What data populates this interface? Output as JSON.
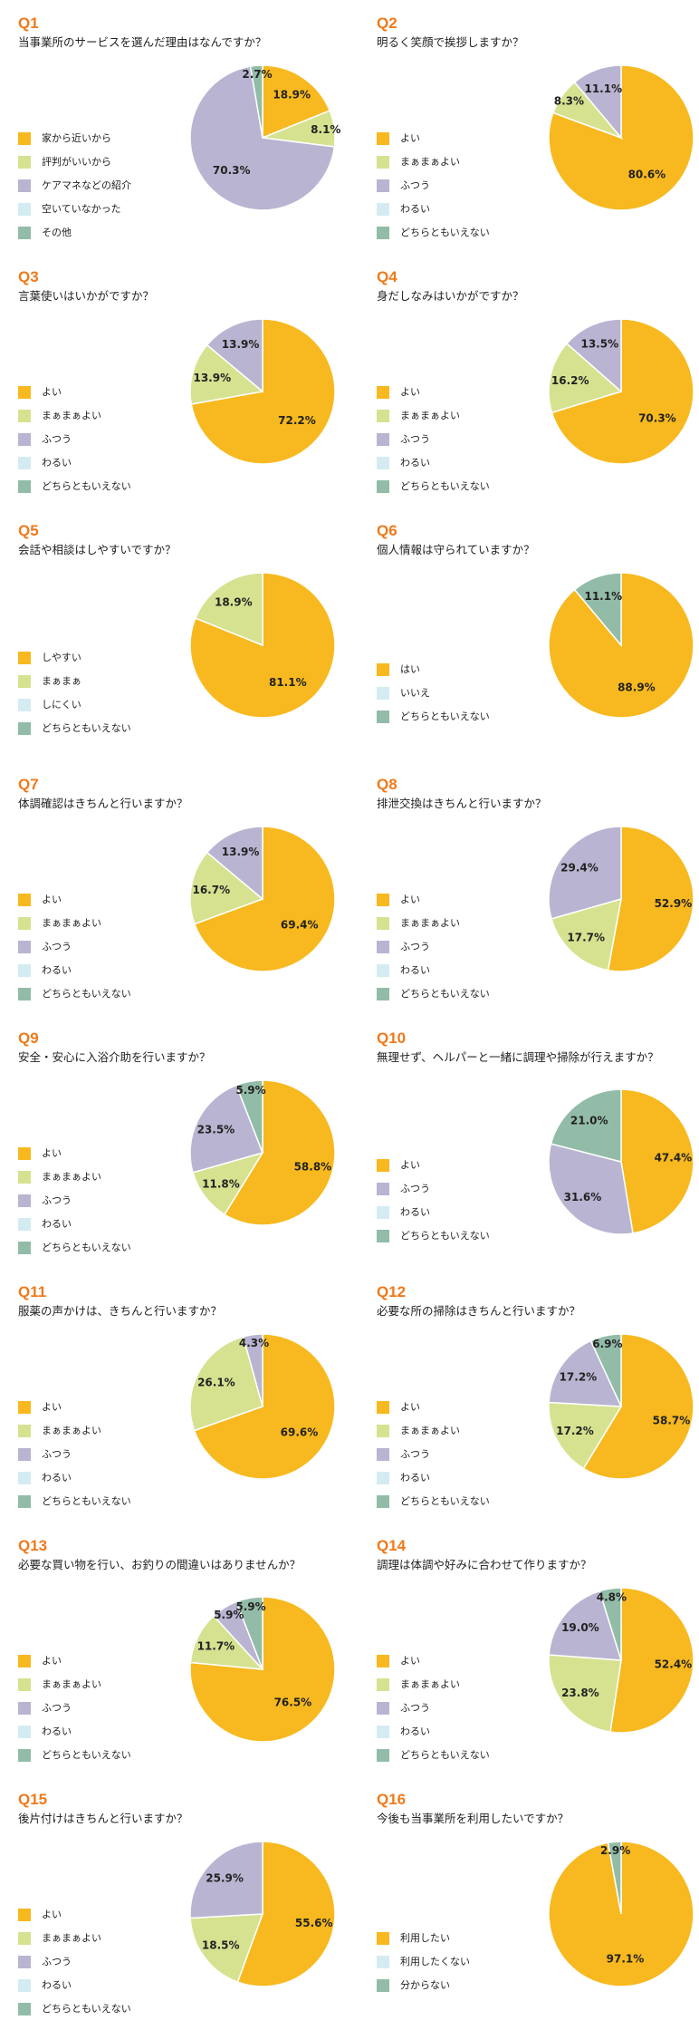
{
  "colors": [
    "#f7b91f",
    "#d6e290",
    "#b9b4d1",
    "#d4ecf1",
    "#92bca8"
  ],
  "chart_data": [
    {
      "type": "pie",
      "qnum": "Q1",
      "title": "当事業所のサービスを選んだ理由はなんですか？",
      "legend": [
        "家から近いから",
        "評判がいいから",
        "ケアマネなどの紹介",
        "空いていなかった",
        "その他"
      ],
      "slices": [
        {
          "value": 18.9,
          "label": "18.9%",
          "color_index": 0
        },
        {
          "value": 8.1,
          "label": "8.1%",
          "color_index": 1
        },
        {
          "value": 70.3,
          "label": "70.3%",
          "color_index": 2
        },
        {
          "value": 2.7,
          "label": "2.7%",
          "color_index": 4
        }
      ]
    },
    {
      "type": "pie",
      "qnum": "Q2",
      "title": "明るく笑顔で挨拶しますか？",
      "legend": [
        "よい",
        "まぁまぁよい",
        "ふつう",
        "わるい",
        "どちらともいえない"
      ],
      "slices": [
        {
          "value": 80.6,
          "label": "80.6%",
          "color_index": 0
        },
        {
          "value": 8.3,
          "label": "8.3%",
          "color_index": 1
        },
        {
          "value": 11.1,
          "label": "11.1%",
          "color_index": 2
        }
      ]
    },
    {
      "type": "pie",
      "qnum": "Q3",
      "title": "言葉使いはいかがですか？",
      "legend": [
        "よい",
        "まぁまぁよい",
        "ふつう",
        "わるい",
        "どちらともいえない"
      ],
      "slices": [
        {
          "value": 72.2,
          "label": "72.2%",
          "color_index": 0
        },
        {
          "value": 13.9,
          "label": "13.9%",
          "color_index": 1
        },
        {
          "value": 13.9,
          "label": "13.9%",
          "color_index": 2
        }
      ]
    },
    {
      "type": "pie",
      "qnum": "Q4",
      "title": "身だしなみはいかがですか？",
      "legend": [
        "よい",
        "まぁまぁよい",
        "ふつう",
        "わるい",
        "どちらともいえない"
      ],
      "slices": [
        {
          "value": 70.3,
          "label": "70.3%",
          "color_index": 0
        },
        {
          "value": 16.2,
          "label": "16.2%",
          "color_index": 1
        },
        {
          "value": 13.5,
          "label": "13.5%",
          "color_index": 2
        }
      ]
    },
    {
      "type": "pie",
      "qnum": "Q5",
      "title": "会話や相談はしやすいですか？",
      "legend": [
        "しやすい",
        "まぁまぁ",
        "しにくい",
        "どちらともいえない"
      ],
      "legend_colors": [
        0,
        1,
        3,
        4
      ],
      "slices": [
        {
          "value": 81.1,
          "label": "81.1%",
          "color_index": 0
        },
        {
          "value": 18.9,
          "label": "18.9%",
          "color_index": 1
        }
      ]
    },
    {
      "type": "pie",
      "qnum": "Q6",
      "title": "個人情報は守られていますか？",
      "legend": [
        "はい",
        "いいえ",
        "どちらともいえない"
      ],
      "legend_colors": [
        0,
        3,
        4
      ],
      "slices": [
        {
          "value": 88.9,
          "label": "88.9%",
          "color_index": 0
        },
        {
          "value": 11.1,
          "label": "11.1%",
          "color_index": 4
        }
      ]
    },
    {
      "type": "pie",
      "qnum": "Q7",
      "title": "体調確認はきちんと行いますか？",
      "legend": [
        "よい",
        "まぁまぁよい",
        "ふつう",
        "わるい",
        "どちらともいえない"
      ],
      "slices": [
        {
          "value": 69.4,
          "label": "69.4%",
          "color_index": 0
        },
        {
          "value": 16.7,
          "label": "16.7%",
          "color_index": 1
        },
        {
          "value": 13.9,
          "label": "13.9%",
          "color_index": 2
        }
      ]
    },
    {
      "type": "pie",
      "qnum": "Q8",
      "title": "排泄交換はきちんと行いますか？",
      "legend": [
        "よい",
        "まぁまぁよい",
        "ふつう",
        "わるい",
        "どちらともいえない"
      ],
      "slices": [
        {
          "value": 52.9,
          "label": "52.9%",
          "color_index": 0
        },
        {
          "value": 17.7,
          "label": "17.7%",
          "color_index": 1
        },
        {
          "value": 29.4,
          "label": "29.4%",
          "color_index": 2
        }
      ]
    },
    {
      "type": "pie",
      "qnum": "Q9",
      "title": "安全・安心に入浴介助を行いますか？",
      "legend": [
        "よい",
        "まぁまぁよい",
        "ふつう",
        "わるい",
        "どちらともいえない"
      ],
      "slices": [
        {
          "value": 58.8,
          "label": "58.8%",
          "color_index": 0
        },
        {
          "value": 11.8,
          "label": "11.8%",
          "color_index": 1
        },
        {
          "value": 23.5,
          "label": "23.5%",
          "color_index": 2
        },
        {
          "value": 5.9,
          "label": "5.9%",
          "color_index": 4
        }
      ]
    },
    {
      "type": "pie",
      "qnum": "Q10",
      "title": "無理せず、ヘルパーと一緒に調理や掃除が行えますか？",
      "legend": [
        "よい",
        "ふつう",
        "わるい",
        "どちらともいえない"
      ],
      "legend_colors": [
        0,
        2,
        3,
        4
      ],
      "slices": [
        {
          "value": 47.4,
          "label": "47.4%",
          "color_index": 0
        },
        {
          "value": 31.6,
          "label": "31.6%",
          "color_index": 2
        },
        {
          "value": 21.0,
          "label": "21.0%",
          "color_index": 4
        }
      ]
    },
    {
      "type": "pie",
      "qnum": "Q11",
      "title": "服薬の声かけは、きちんと行いますか？",
      "legend": [
        "よい",
        "まぁまぁよい",
        "ふつう",
        "わるい",
        "どちらともいえない"
      ],
      "slices": [
        {
          "value": 69.6,
          "label": "69.6%",
          "color_index": 0
        },
        {
          "value": 26.1,
          "label": "26.1%",
          "color_index": 1
        },
        {
          "value": 4.3,
          "label": "4.3%",
          "color_index": 2
        }
      ]
    },
    {
      "type": "pie",
      "qnum": "Q12",
      "title": "必要な所の掃除はきちんと行いますか？",
      "legend": [
        "よい",
        "まぁまぁよい",
        "ふつう",
        "わるい",
        "どちらともいえない"
      ],
      "slices": [
        {
          "value": 58.7,
          "label": "58.7%",
          "color_index": 0
        },
        {
          "value": 17.2,
          "label": "17.2%",
          "color_index": 1
        },
        {
          "value": 17.2,
          "label": "17.2%",
          "color_index": 2
        },
        {
          "value": 6.9,
          "label": "6.9%",
          "color_index": 4
        }
      ]
    },
    {
      "type": "pie",
      "qnum": "Q13",
      "title": "必要な買い物を行い、お釣りの間違いはありませんか？",
      "legend": [
        "よい",
        "まぁまぁよい",
        "ふつう",
        "わるい",
        "どちらともいえない"
      ],
      "slices": [
        {
          "value": 76.5,
          "label": "76.5%",
          "color_index": 0
        },
        {
          "value": 11.7,
          "label": "11.7%",
          "color_index": 1
        },
        {
          "value": 5.9,
          "label": "5.9%",
          "color_index": 2
        },
        {
          "value": 5.9,
          "label": "5.9%",
          "color_index": 4
        }
      ]
    },
    {
      "type": "pie",
      "qnum": "Q14",
      "title": "調理は体調や好みに合わせて作りますか？",
      "legend": [
        "よい",
        "まぁまぁよい",
        "ふつう",
        "わるい",
        "どちらともいえない"
      ],
      "slices": [
        {
          "value": 52.4,
          "label": "52.4%",
          "color_index": 0
        },
        {
          "value": 23.8,
          "label": "23.8%",
          "color_index": 1
        },
        {
          "value": 19.0,
          "label": "19.0%",
          "color_index": 2
        },
        {
          "value": 4.8,
          "label": "4.8%",
          "color_index": 4
        }
      ]
    },
    {
      "type": "pie",
      "qnum": "Q15",
      "title": "後片付けはきちんと行いますか？",
      "legend": [
        "よい",
        "まぁまぁよい",
        "ふつう",
        "わるい",
        "どちらともいえない"
      ],
      "slices": [
        {
          "value": 55.6,
          "label": "55.6%",
          "color_index": 0
        },
        {
          "value": 18.5,
          "label": "18.5%",
          "color_index": 1
        },
        {
          "value": 25.9,
          "label": "25.9%",
          "color_index": 2
        }
      ]
    },
    {
      "type": "pie",
      "qnum": "Q16",
      "title": "今後も当事業所を利用したいですか？",
      "legend": [
        "利用したい",
        "利用したくない",
        "分からない"
      ],
      "legend_colors": [
        0,
        3,
        4
      ],
      "slices": [
        {
          "value": 97.1,
          "label": "97.1%",
          "color_index": 0
        },
        {
          "value": 2.9,
          "label": "2.9%",
          "color_index": 4
        }
      ]
    }
  ]
}
